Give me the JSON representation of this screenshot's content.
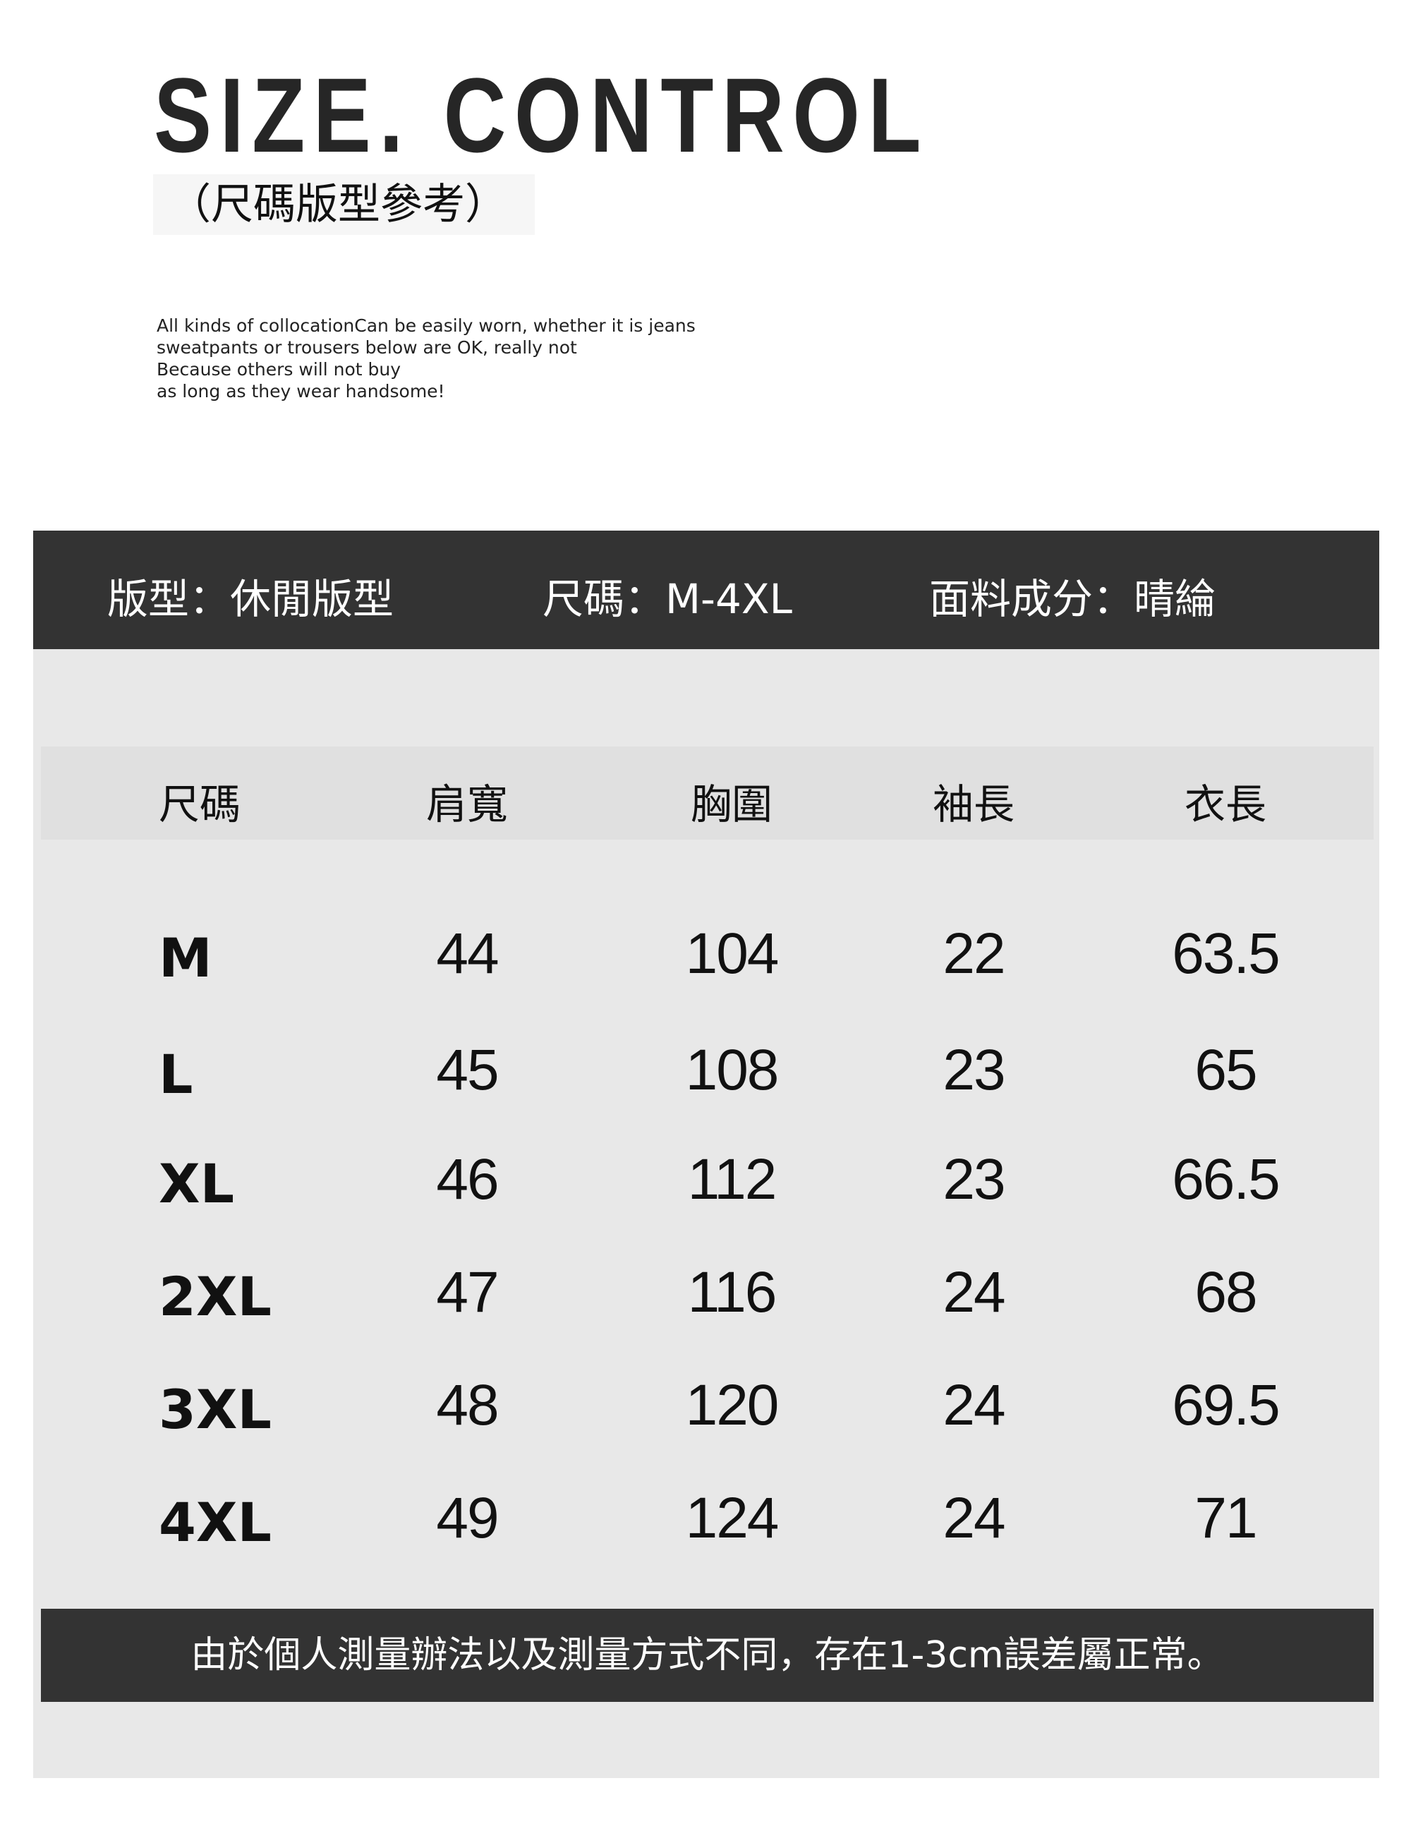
{
  "title": "SIZE. CONTROL",
  "subtitle": "（尺碼版型參考）",
  "description": [
    "All kinds of collocationCan be easily worn, whether it is jeans",
    "sweatpants or trousers below are OK, really not",
    "Because others will not buy",
    "as long as they wear handsome!"
  ],
  "info": {
    "fit": "版型：休閒版型",
    "sizes": "尺碼：M-4XL",
    "fabric": "面料成分：晴綸"
  },
  "table": {
    "headers": [
      "尺碼",
      "肩寬",
      "胸圍",
      "袖長",
      "衣長"
    ],
    "rows": [
      [
        "M",
        "44",
        "104",
        "22",
        "63.5"
      ],
      [
        "L",
        "45",
        "108",
        "23",
        "65"
      ],
      [
        "XL",
        "46",
        "112",
        "23",
        "66.5"
      ],
      [
        "2XL",
        "47",
        "116",
        "24",
        "68"
      ],
      [
        "3XL",
        "48",
        "120",
        "24",
        "69.5"
      ],
      [
        "4XL",
        "49",
        "124",
        "24",
        "71"
      ]
    ]
  },
  "footer_note": "由於個人測量辦法以及測量方式不同，存在1-3cm誤差屬正常。",
  "colors": {
    "band": "#333333",
    "panel": "#e8e8e8",
    "header_row": "#e0e0e0"
  }
}
